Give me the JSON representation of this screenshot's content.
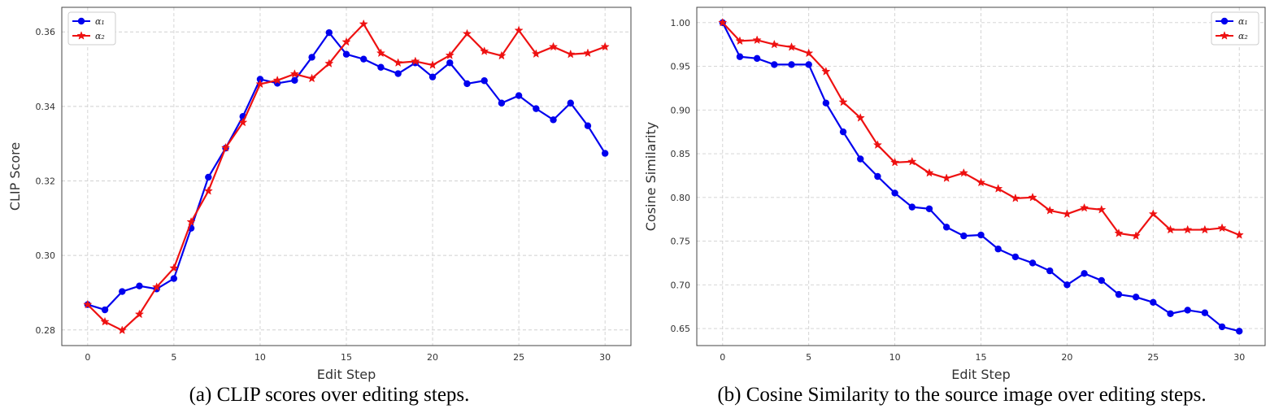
{
  "chart_data": [
    {
      "type": "line",
      "xlabel": "Edit Step",
      "ylabel": "CLIP Score",
      "caption": "(a) CLIP scores over editing steps.",
      "xlim": [
        -1.5,
        31.5
      ],
      "ylim": [
        0.2758,
        0.3666
      ],
      "xticks": [
        0,
        5,
        10,
        15,
        20,
        25,
        30
      ],
      "yticks": [
        0.28,
        0.3,
        0.32,
        0.34,
        0.36
      ],
      "ytick_labels": [
        "0.28",
        "0.30",
        "0.32",
        "0.34",
        "0.36"
      ],
      "grid": true,
      "legend_position": "top-left",
      "x": [
        0,
        1,
        2,
        3,
        4,
        5,
        6,
        7,
        8,
        9,
        10,
        11,
        12,
        13,
        14,
        15,
        16,
        17,
        18,
        19,
        20,
        21,
        22,
        23,
        24,
        25,
        26,
        27,
        28,
        29,
        30
      ],
      "series": [
        {
          "name": "α₁",
          "color": "#0000ee",
          "marker": "circle",
          "values": [
            0.2868,
            0.2854,
            0.2903,
            0.2918,
            0.291,
            0.2938,
            0.3073,
            0.321,
            0.3288,
            0.3373,
            0.3473,
            0.3462,
            0.347,
            0.3532,
            0.3598,
            0.354,
            0.3527,
            0.3505,
            0.3488,
            0.3517,
            0.3479,
            0.3517,
            0.3461,
            0.3469,
            0.3409,
            0.3429,
            0.3394,
            0.3364,
            0.3409,
            0.3348,
            0.3274
          ]
        },
        {
          "name": "α₂",
          "color": "#ee1111",
          "marker": "star",
          "values": [
            0.2868,
            0.2822,
            0.2799,
            0.2842,
            0.2915,
            0.2966,
            0.309,
            0.3173,
            0.3289,
            0.3357,
            0.346,
            0.347,
            0.3487,
            0.3475,
            0.3515,
            0.3573,
            0.3621,
            0.3543,
            0.3517,
            0.3521,
            0.3511,
            0.3537,
            0.3595,
            0.3548,
            0.3536,
            0.3604,
            0.3541,
            0.356,
            0.354,
            0.3543,
            0.356
          ]
        }
      ]
    },
    {
      "type": "line",
      "xlabel": "Edit Step",
      "ylabel": "Cosine Similarity",
      "caption": "(b) Cosine Similarity to the source image over editing steps.",
      "xlim": [
        -1.5,
        31.5
      ],
      "ylim": [
        0.6305,
        1.0175
      ],
      "xticks": [
        0,
        5,
        10,
        15,
        20,
        25,
        30
      ],
      "yticks": [
        0.65,
        0.7,
        0.75,
        0.8,
        0.85,
        0.9,
        0.95,
        1.0
      ],
      "ytick_labels": [
        "0.65",
        "0.70",
        "0.75",
        "0.80",
        "0.85",
        "0.90",
        "0.95",
        "1.00"
      ],
      "grid": true,
      "legend_position": "top-right",
      "x": [
        0,
        1,
        2,
        3,
        4,
        5,
        6,
        7,
        8,
        9,
        10,
        11,
        12,
        13,
        14,
        15,
        16,
        17,
        18,
        19,
        20,
        21,
        22,
        23,
        24,
        25,
        26,
        27,
        28,
        29,
        30
      ],
      "series": [
        {
          "name": "α₁",
          "color": "#0000ee",
          "marker": "circle",
          "values": [
            1.0,
            0.961,
            0.959,
            0.952,
            0.952,
            0.952,
            0.908,
            0.875,
            0.844,
            0.824,
            0.805,
            0.789,
            0.787,
            0.766,
            0.756,
            0.757,
            0.741,
            0.732,
            0.725,
            0.716,
            0.7,
            0.713,
            0.705,
            0.689,
            0.686,
            0.68,
            0.667,
            0.671,
            0.668,
            0.652,
            0.647
          ]
        },
        {
          "name": "α₂",
          "color": "#ee1111",
          "marker": "star",
          "values": [
            1.0,
            0.979,
            0.98,
            0.975,
            0.972,
            0.965,
            0.944,
            0.909,
            0.891,
            0.86,
            0.84,
            0.841,
            0.828,
            0.822,
            0.828,
            0.817,
            0.81,
            0.799,
            0.8,
            0.785,
            0.781,
            0.788,
            0.786,
            0.759,
            0.756,
            0.781,
            0.763,
            0.763,
            0.763,
            0.765,
            0.757
          ]
        }
      ]
    }
  ]
}
